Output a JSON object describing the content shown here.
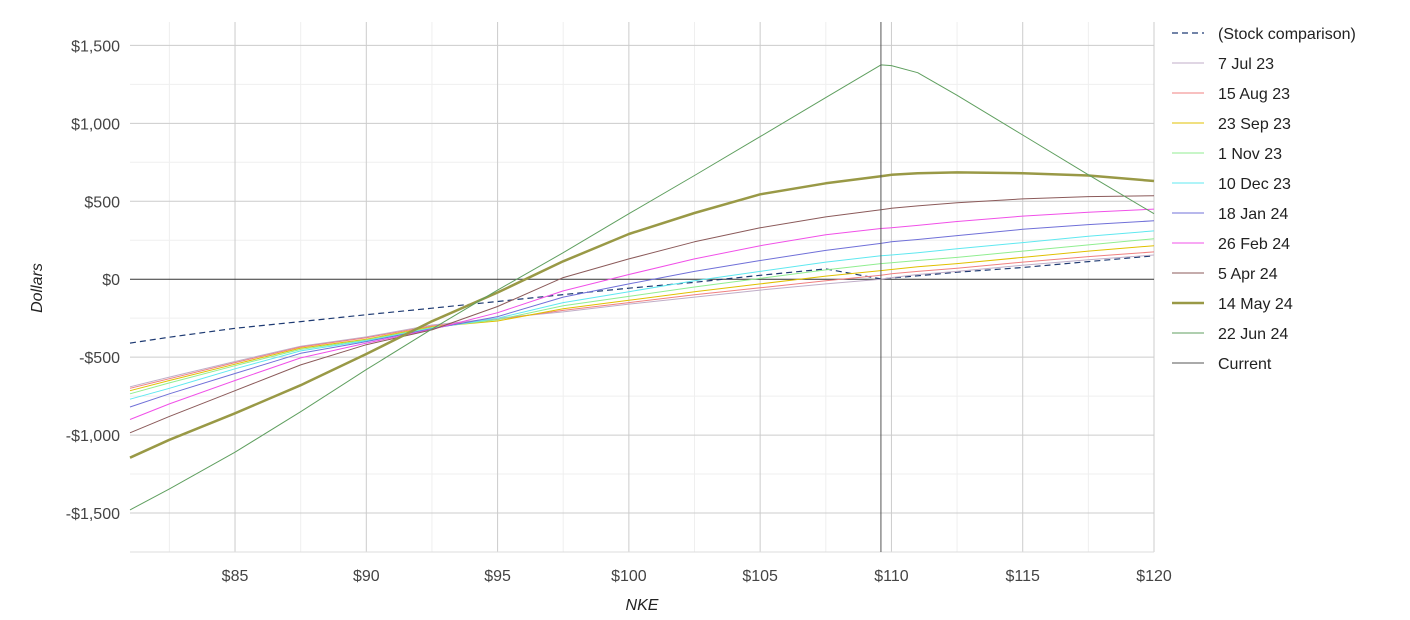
{
  "chart_data": {
    "type": "line",
    "title": "",
    "xlabel": "NKE",
    "ylabel": "Dollars",
    "xlim": [
      81,
      120
    ],
    "ylim": [
      -1750,
      1650
    ],
    "x_ticks": [
      85,
      90,
      95,
      100,
      105,
      110,
      115,
      120
    ],
    "x_tick_labels": [
      "$85",
      "$90",
      "$95",
      "$100",
      "$105",
      "$110",
      "$115",
      "$120"
    ],
    "y_ticks": [
      1500,
      1000,
      500,
      0,
      -500,
      -1000,
      -1500
    ],
    "y_tick_labels": [
      "$1,500",
      "$1,000",
      "$500",
      "$0",
      "-$500",
      "-$1,000",
      "-$1,500"
    ],
    "grid": true,
    "legend_position": "right",
    "x": [
      81,
      82.5,
      85,
      87.5,
      90,
      92.5,
      95,
      97.5,
      100,
      102.5,
      105,
      107.5,
      109.6,
      110,
      111,
      112.5,
      115,
      117.5,
      120
    ],
    "series": [
      {
        "name": "(Stock comparison)",
        "color": "#1f3b73",
        "style": "dashed",
        "width": 1.2,
        "values": [
          -410,
          -372,
          -315,
          -272,
          -228,
          -186,
          -143,
          -99,
          -58,
          -20,
          25,
          66,
          2,
          8,
          22,
          45,
          75,
          113,
          150
        ]
      },
      {
        "name": "7 Jul 23",
        "color": "#c0aec8",
        "style": "solid",
        "width": 1,
        "values": [
          -690,
          -628,
          -528,
          -430,
          -370,
          -294,
          -250,
          -210,
          -160,
          -115,
          -70,
          -30,
          0,
          10,
          30,
          50,
          90,
          125,
          155
        ]
      },
      {
        "name": "15 Aug 23",
        "color": "#f08080",
        "style": "solid",
        "width": 1,
        "values": [
          -700,
          -638,
          -535,
          -435,
          -375,
          -300,
          -258,
          -200,
          -150,
          -100,
          -55,
          -10,
          25,
          35,
          50,
          70,
          110,
          145,
          175
        ]
      },
      {
        "name": "23 Sep 23",
        "color": "#e0c000",
        "style": "solid",
        "width": 1,
        "values": [
          -715,
          -650,
          -545,
          -442,
          -385,
          -306,
          -268,
          -190,
          -135,
          -80,
          -30,
          20,
          55,
          62,
          80,
          100,
          140,
          180,
          215
        ]
      },
      {
        "name": "1 Nov 23",
        "color": "#90ee90",
        "style": "solid",
        "width": 1,
        "values": [
          -735,
          -665,
          -555,
          -450,
          -390,
          -310,
          -260,
          -170,
          -110,
          -50,
          5,
          60,
          100,
          105,
          120,
          140,
          180,
          220,
          260
        ]
      },
      {
        "name": "10 Dec 23",
        "color": "#5fe8f0",
        "style": "solid",
        "width": 1,
        "values": [
          -770,
          -700,
          -575,
          -460,
          -395,
          -315,
          -250,
          -150,
          -80,
          -10,
          50,
          110,
          150,
          155,
          170,
          195,
          235,
          275,
          310
        ]
      },
      {
        "name": "18 Jan 24",
        "color": "#7070d8",
        "style": "solid",
        "width": 1,
        "values": [
          -820,
          -735,
          -605,
          -475,
          -400,
          -318,
          -240,
          -115,
          -30,
          50,
          120,
          185,
          230,
          240,
          255,
          280,
          320,
          350,
          375
        ]
      },
      {
        "name": "26 Feb 24",
        "color": "#f050e8",
        "style": "solid",
        "width": 1,
        "values": [
          -900,
          -800,
          -650,
          -505,
          -410,
          -322,
          -215,
          -75,
          30,
          130,
          215,
          285,
          325,
          330,
          345,
          370,
          405,
          430,
          450
        ]
      },
      {
        "name": "5 Apr 24",
        "color": "#8b5a5a",
        "style": "solid",
        "width": 1,
        "values": [
          -985,
          -880,
          -715,
          -550,
          -420,
          -325,
          -175,
          10,
          130,
          240,
          330,
          400,
          445,
          455,
          470,
          490,
          515,
          530,
          535
        ]
      },
      {
        "name": "14 May 24",
        "color": "#999946",
        "style": "solid",
        "width": 2.5,
        "values": [
          -1145,
          -1030,
          -860,
          -680,
          -480,
          -270,
          -85,
          115,
          290,
          425,
          545,
          615,
          660,
          670,
          680,
          685,
          680,
          665,
          630
        ]
      },
      {
        "name": "22 Jun 24",
        "color": "#5f9f5f",
        "style": "solid",
        "width": 1,
        "values": [
          -1480,
          -1345,
          -1110,
          -850,
          -580,
          -320,
          -70,
          170,
          420,
          665,
          915,
          1165,
          1375,
          1370,
          1325,
          1180,
          925,
          670,
          420
        ]
      },
      {
        "name": "Current",
        "color": "#555555",
        "style": "solid",
        "width": 1,
        "vertical_x": 109.6
      }
    ]
  }
}
